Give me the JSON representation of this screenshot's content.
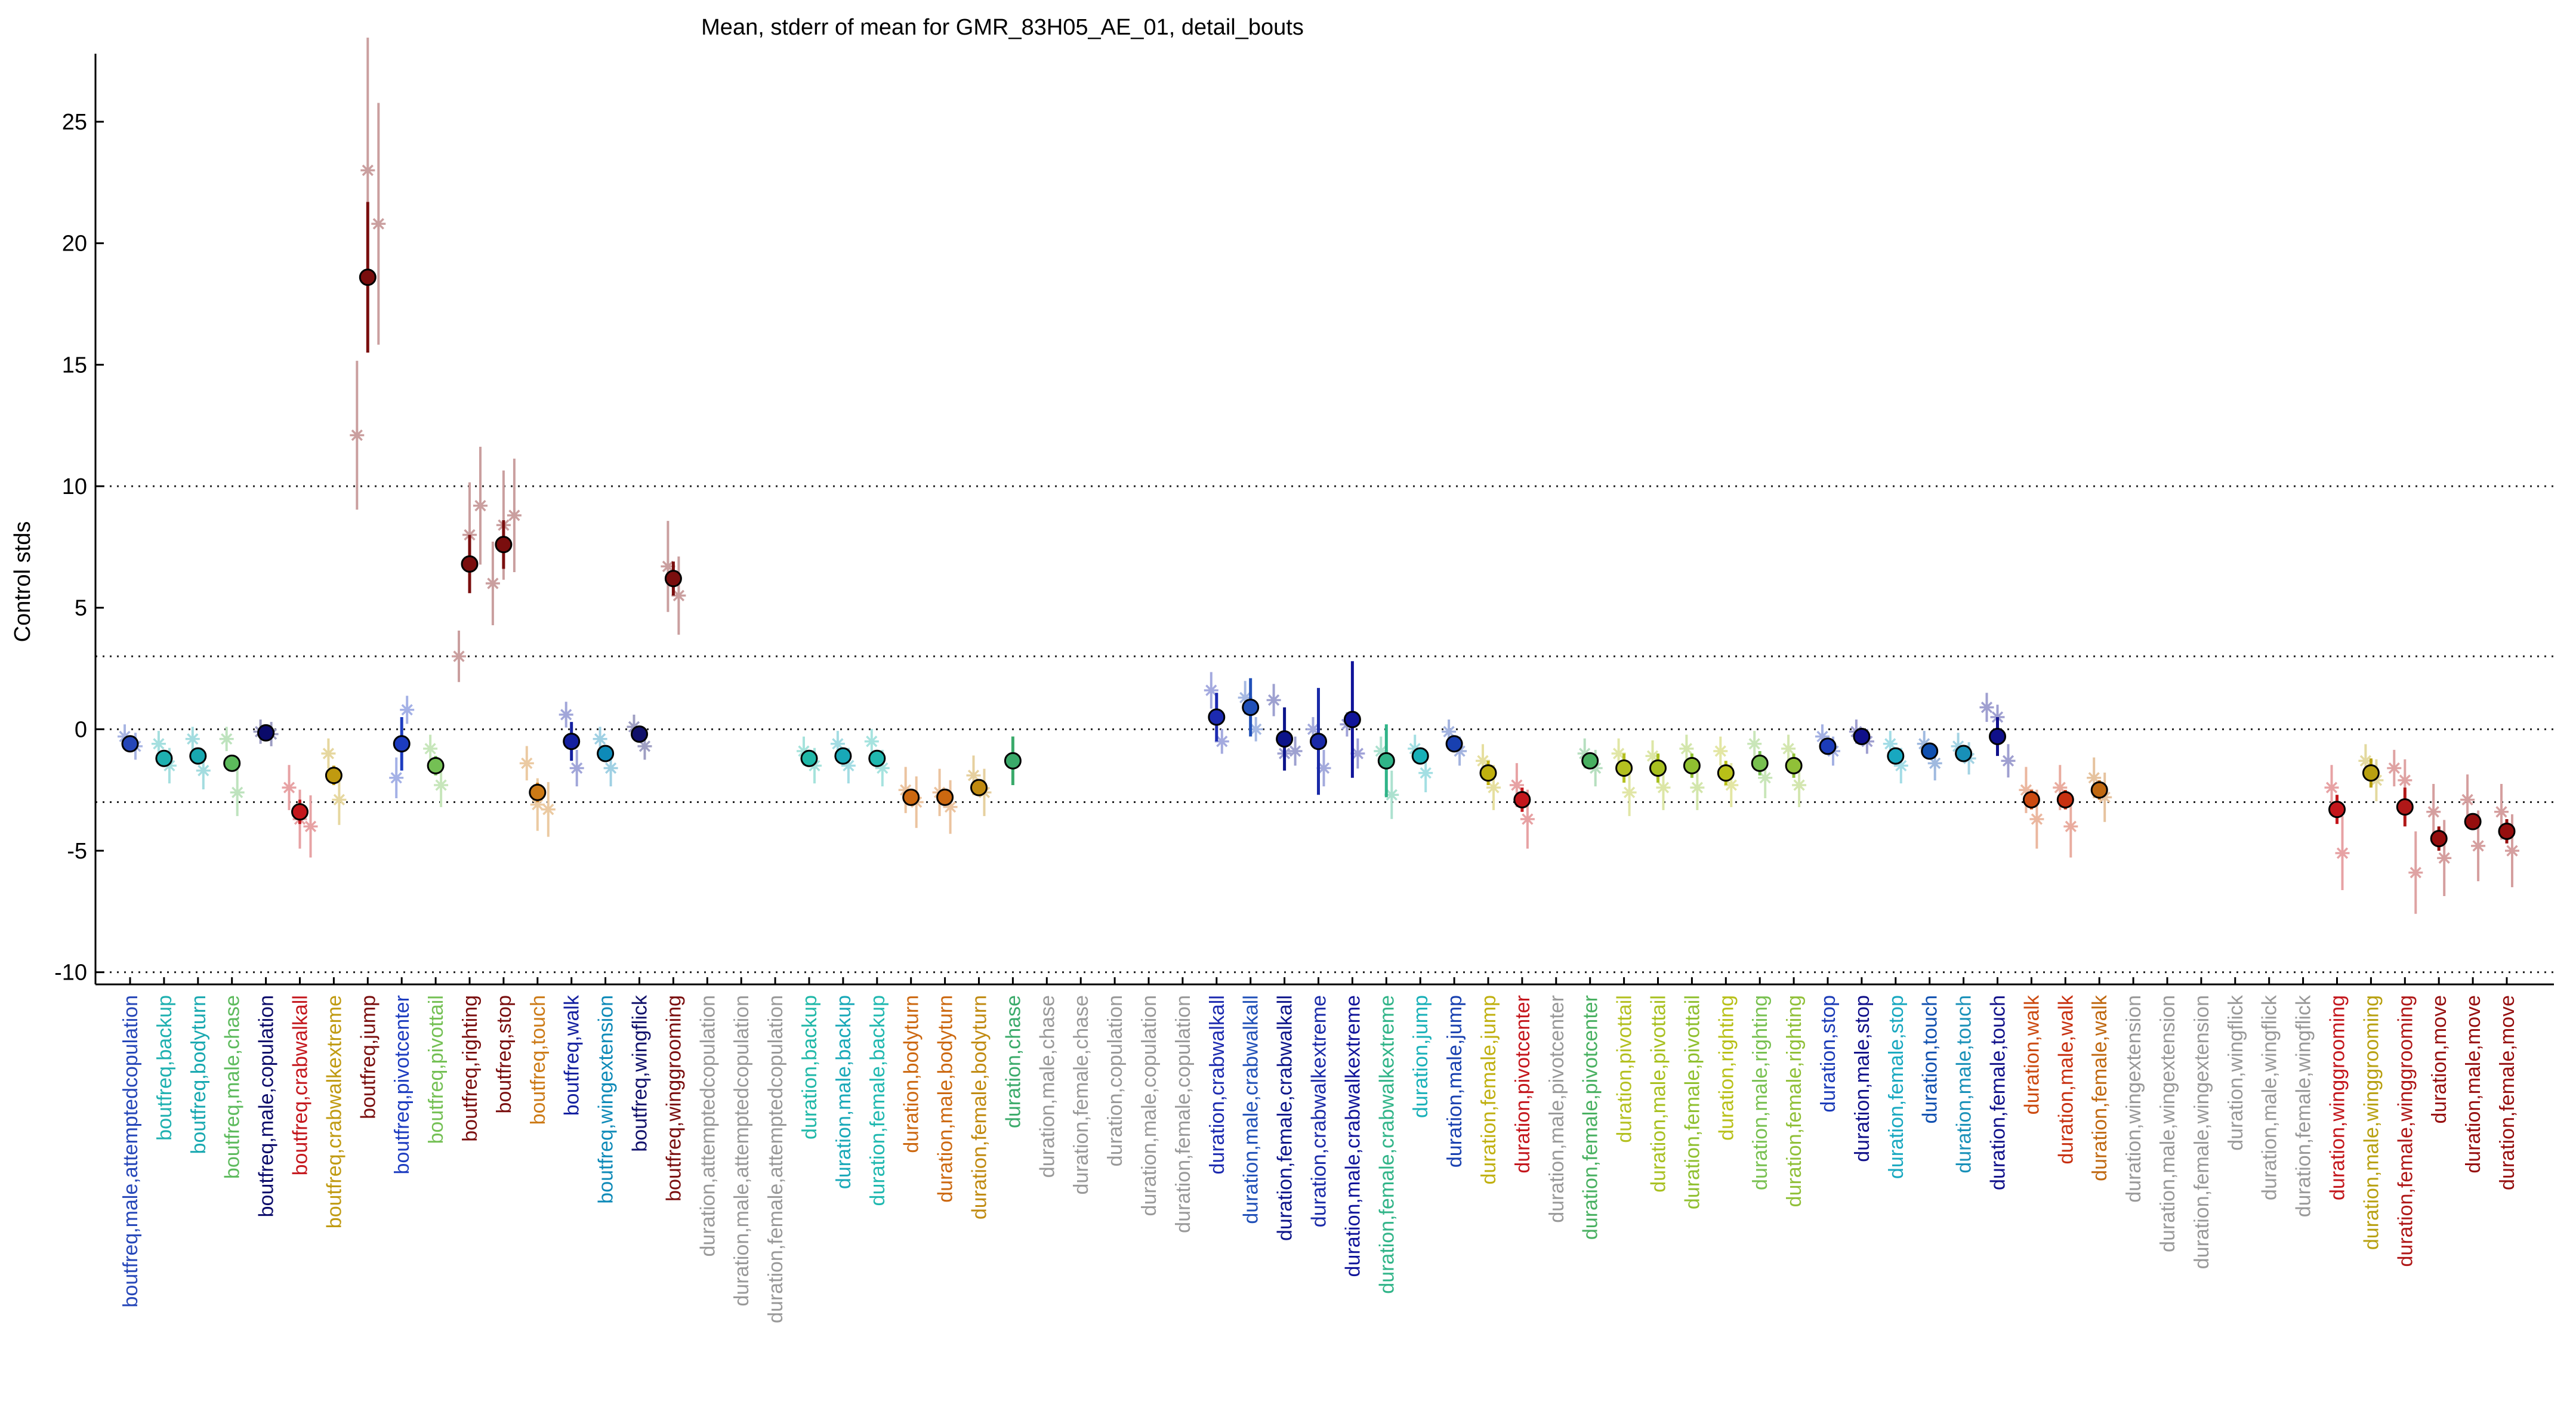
{
  "chart_data": {
    "type": "scatter",
    "title": "Mean, stderr of mean for GMR_83H05_AE_01, detail_bouts",
    "xlabel": "",
    "ylabel": "Control stds",
    "ylim": [
      -10.5,
      27.8
    ],
    "yticks": [
      -10,
      -5,
      0,
      5,
      10,
      15,
      20,
      25
    ],
    "reference_lines": [
      -10,
      -3,
      0,
      3,
      10
    ],
    "grid": false,
    "categories": [
      {
        "label": "boutfreq,male,attemptedcopulation",
        "color": "#2546b8",
        "mean": -0.6,
        "se": 0.25,
        "reps": [
          -0.3,
          -0.7
        ]
      },
      {
        "label": "boutfreq,backup",
        "color": "#1eb0b0",
        "mean": -1.2,
        "se": 0.2,
        "reps": [
          -0.6,
          -1.5
        ]
      },
      {
        "label": "boutfreq,bodyturn",
        "color": "#18a8b0",
        "mean": -1.1,
        "se": 0.3,
        "reps": [
          -0.4,
          -1.7
        ]
      },
      {
        "label": "boutfreq,male,chase",
        "color": "#5cba5c",
        "mean": -1.4,
        "se": 0.3,
        "reps": [
          -0.4,
          -2.6
        ]
      },
      {
        "label": "boutfreq,male,copulation",
        "color": "#0a0a6a",
        "mean": -0.15,
        "se": 0.1,
        "reps": [
          -0.1,
          -0.2
        ]
      },
      {
        "label": "boutfreq,crabwalkall",
        "color": "#c4161c",
        "mean": -3.4,
        "se": 0.5,
        "reps": [
          -2.4,
          -3.7,
          -4.0
        ]
      },
      {
        "label": "boutfreq,crabwalkextreme",
        "color": "#c09a10",
        "mean": -1.9,
        "se": 0.4,
        "reps": [
          -1.0,
          -2.9
        ]
      },
      {
        "label": "boutfreq,jump",
        "color": "#7a0e0e",
        "mean": 18.6,
        "se": 3.1,
        "reps": [
          12.1,
          23.0,
          20.8
        ]
      },
      {
        "label": "boutfreq,pivotcenter",
        "color": "#1c3cc0",
        "mean": -0.6,
        "se": 1.1,
        "reps": [
          -2.0,
          0.8
        ]
      },
      {
        "label": "boutfreq,pivottail",
        "color": "#74c054",
        "mean": -1.5,
        "se": 0.4,
        "reps": [
          -0.8,
          -2.3
        ]
      },
      {
        "label": "boutfreq,righting",
        "color": "#7a0e0e",
        "mean": 6.8,
        "se": 1.2,
        "reps": [
          3.0,
          8.0,
          9.2
        ]
      },
      {
        "label": "boutfreq,stop",
        "color": "#7a0e0e",
        "mean": 7.6,
        "se": 1.0,
        "reps": [
          6.0,
          8.4,
          8.8
        ]
      },
      {
        "label": "boutfreq,touch",
        "color": "#cc7a16",
        "mean": -2.6,
        "se": 0.4,
        "reps": [
          -1.4,
          -3.1,
          -3.3
        ]
      },
      {
        "label": "boutfreq,walk",
        "color": "#1420a0",
        "mean": -0.5,
        "se": 0.8,
        "reps": [
          0.6,
          -1.6
        ]
      },
      {
        "label": "boutfreq,wingextension",
        "color": "#0e8ab8",
        "mean": -1.0,
        "se": 0.3,
        "reps": [
          -0.4,
          -1.6
        ]
      },
      {
        "label": "boutfreq,wingflick",
        "color": "#10106a",
        "mean": -0.2,
        "se": 0.3,
        "reps": [
          0.1,
          -0.7
        ]
      },
      {
        "label": "boutfreq,winggrooming",
        "color": "#7a0e0e",
        "mean": 6.2,
        "se": 0.7,
        "reps": [
          6.7,
          5.5
        ]
      },
      {
        "label": "duration,attemptedcopulation",
        "color": "#999999",
        "mean": null,
        "se": null,
        "reps": []
      },
      {
        "label": "duration,male,attemptedcopulation",
        "color": "#999999",
        "mean": null,
        "se": null,
        "reps": []
      },
      {
        "label": "duration,female,attemptedcopulation",
        "color": "#999999",
        "mean": null,
        "se": null,
        "reps": []
      },
      {
        "label": "duration,backup",
        "color": "#20b8a8",
        "mean": -1.2,
        "se": 0.3,
        "reps": [
          -0.9,
          -1.5
        ]
      },
      {
        "label": "duration,male,backup",
        "color": "#18a8b8",
        "mean": -1.1,
        "se": 0.3,
        "reps": [
          -0.6,
          -1.5
        ]
      },
      {
        "label": "duration,female,backup",
        "color": "#20b8b0",
        "mean": -1.2,
        "se": 0.3,
        "reps": [
          -0.5,
          -1.6
        ]
      },
      {
        "label": "duration,bodyturn",
        "color": "#cc6810",
        "mean": -2.8,
        "se": 0.3,
        "reps": [
          -2.5,
          -3.0
        ]
      },
      {
        "label": "duration,male,bodyturn",
        "color": "#cc6810",
        "mean": -2.8,
        "se": 0.3,
        "reps": [
          -2.6,
          -3.2
        ]
      },
      {
        "label": "duration,female,bodyturn",
        "color": "#c08a10",
        "mean": -2.4,
        "se": 0.3,
        "reps": [
          -1.9,
          -2.6
        ]
      },
      {
        "label": "duration,chase",
        "color": "#3aaa6a",
        "mean": -1.3,
        "se": 1.0,
        "reps": []
      },
      {
        "label": "duration,male,chase",
        "color": "#999999",
        "mean": null,
        "se": null,
        "reps": []
      },
      {
        "label": "duration,female,chase",
        "color": "#999999",
        "mean": null,
        "se": null,
        "reps": []
      },
      {
        "label": "duration,copulation",
        "color": "#999999",
        "mean": null,
        "se": null,
        "reps": []
      },
      {
        "label": "duration,male,copulation",
        "color": "#999999",
        "mean": null,
        "se": null,
        "reps": []
      },
      {
        "label": "duration,female,copulation",
        "color": "#999999",
        "mean": null,
        "se": null,
        "reps": []
      },
      {
        "label": "duration,crabwalkall",
        "color": "#1c2ab0",
        "mean": 0.5,
        "se": 1.0,
        "reps": [
          1.6,
          -0.5
        ]
      },
      {
        "label": "duration,male,crabwalkall",
        "color": "#2050b8",
        "mean": 0.9,
        "se": 1.2,
        "reps": [
          1.3,
          0.0
        ]
      },
      {
        "label": "duration,female,crabwalkall",
        "color": "#0c148a",
        "mean": -0.4,
        "se": 1.3,
        "reps": [
          1.2,
          -1.0,
          -0.9
        ]
      },
      {
        "label": "duration,crabwalkextreme",
        "color": "#1a2aa8",
        "mean": -0.5,
        "se": 2.2,
        "reps": [
          0.0,
          -1.6
        ]
      },
      {
        "label": "duration,male,crabwalkextreme",
        "color": "#10149a",
        "mean": 0.4,
        "se": 2.4,
        "reps": [
          0.2,
          -1.0
        ]
      },
      {
        "label": "duration,female,crabwalkextreme",
        "color": "#30b488",
        "mean": -1.3,
        "se": 1.5,
        "reps": [
          -0.9,
          -2.7
        ]
      },
      {
        "label": "duration,jump",
        "color": "#18b0b8",
        "mean": -1.1,
        "se": 0.3,
        "reps": [
          -0.8,
          -1.8
        ]
      },
      {
        "label": "duration,male,jump",
        "color": "#1840b0",
        "mean": -0.6,
        "se": 0.3,
        "reps": [
          -0.1,
          -0.9
        ]
      },
      {
        "label": "duration,female,jump",
        "color": "#c0b010",
        "mean": -1.8,
        "se": 0.5,
        "reps": [
          -1.3,
          -2.4
        ]
      },
      {
        "label": "duration,pivotcenter",
        "color": "#c4161c",
        "mean": -2.9,
        "se": 0.5,
        "reps": [
          -2.3,
          -3.7
        ]
      },
      {
        "label": "duration,male,pivotcenter",
        "color": "#999999",
        "mean": null,
        "se": null,
        "reps": []
      },
      {
        "label": "duration,female,pivotcenter",
        "color": "#48b060",
        "mean": -1.3,
        "se": 0.3,
        "reps": [
          -1.0,
          -1.6
        ]
      },
      {
        "label": "duration,pivottail",
        "color": "#b4c020",
        "mean": -1.6,
        "se": 0.6,
        "reps": [
          -1.0,
          -2.6
        ]
      },
      {
        "label": "duration,male,pivottail",
        "color": "#a8c020",
        "mean": -1.6,
        "se": 0.6,
        "reps": [
          -1.1,
          -2.4
        ]
      },
      {
        "label": "duration,female,pivottail",
        "color": "#90c030",
        "mean": -1.5,
        "se": 0.5,
        "reps": [
          -0.8,
          -2.4
        ]
      },
      {
        "label": "duration,righting",
        "color": "#b8c018",
        "mean": -1.8,
        "se": 0.5,
        "reps": [
          -0.9,
          -2.3
        ]
      },
      {
        "label": "duration,male,righting",
        "color": "#78c050",
        "mean": -1.4,
        "se": 0.5,
        "reps": [
          -0.6,
          -2.0
        ]
      },
      {
        "label": "duration,female,righting",
        "color": "#90c038",
        "mean": -1.5,
        "se": 0.5,
        "reps": [
          -0.8,
          -2.3
        ]
      },
      {
        "label": "duration,stop",
        "color": "#1c3cb8",
        "mean": -0.7,
        "se": 0.2,
        "reps": [
          -0.3,
          -0.9
        ]
      },
      {
        "label": "duration,male,stop",
        "color": "#10108a",
        "mean": -0.3,
        "se": 0.2,
        "reps": [
          -0.1,
          -0.5
        ]
      },
      {
        "label": "duration,female,stop",
        "color": "#18a8c0",
        "mean": -1.1,
        "se": 0.2,
        "reps": [
          -0.6,
          -1.5
        ]
      },
      {
        "label": "duration,touch",
        "color": "#1050b0",
        "mean": -0.9,
        "se": 0.3,
        "reps": [
          -0.6,
          -1.4
        ]
      },
      {
        "label": "duration,male,touch",
        "color": "#1890b8",
        "mean": -1.0,
        "se": 0.2,
        "reps": [
          -0.7,
          -1.2
        ]
      },
      {
        "label": "duration,female,touch",
        "color": "#10108a",
        "mean": -0.3,
        "se": 0.8,
        "reps": [
          0.9,
          0.5,
          -1.3
        ]
      },
      {
        "label": "duration,walk",
        "color": "#cc4a10",
        "mean": -2.9,
        "se": 0.4,
        "reps": [
          -2.5,
          -3.7
        ]
      },
      {
        "label": "duration,male,walk",
        "color": "#c83010",
        "mean": -2.9,
        "se": 0.4,
        "reps": [
          -2.4,
          -4.0
        ]
      },
      {
        "label": "duration,female,walk",
        "color": "#c06810",
        "mean": -2.5,
        "se": 0.4,
        "reps": [
          -2.0,
          -2.8
        ]
      },
      {
        "label": "duration,wingextension",
        "color": "#999999",
        "mean": null,
        "se": null,
        "reps": []
      },
      {
        "label": "duration,male,wingextension",
        "color": "#999999",
        "mean": null,
        "se": null,
        "reps": []
      },
      {
        "label": "duration,female,wingextension",
        "color": "#999999",
        "mean": null,
        "se": null,
        "reps": []
      },
      {
        "label": "duration,wingflick",
        "color": "#999999",
        "mean": null,
        "se": null,
        "reps": []
      },
      {
        "label": "duration,male,wingflick",
        "color": "#999999",
        "mean": null,
        "se": null,
        "reps": []
      },
      {
        "label": "duration,female,wingflick",
        "color": "#999999",
        "mean": null,
        "se": null,
        "reps": []
      },
      {
        "label": "duration,winggrooming",
        "color": "#c4161c",
        "mean": -3.3,
        "se": 0.6,
        "reps": [
          -2.4,
          -5.1
        ]
      },
      {
        "label": "duration,male,winggrooming",
        "color": "#b8a010",
        "mean": -1.8,
        "se": 0.6,
        "reps": [
          -1.3,
          -2.1
        ]
      },
      {
        "label": "duration,female,winggrooming",
        "color": "#b01818",
        "mean": -3.2,
        "se": 0.8,
        "reps": [
          -1.6,
          -2.1,
          -5.9
        ]
      },
      {
        "label": "duration,move",
        "color": "#960e0e",
        "mean": -4.5,
        "se": 0.5,
        "reps": [
          -3.4,
          -5.3
        ]
      },
      {
        "label": "duration,male,move",
        "color": "#960e0e",
        "mean": -3.8,
        "se": 0.3,
        "reps": [
          -2.9,
          -4.8
        ]
      },
      {
        "label": "duration,female,move",
        "color": "#960e0e",
        "mean": -4.2,
        "se": 0.5,
        "reps": [
          -3.4,
          -5.0
        ]
      }
    ]
  }
}
